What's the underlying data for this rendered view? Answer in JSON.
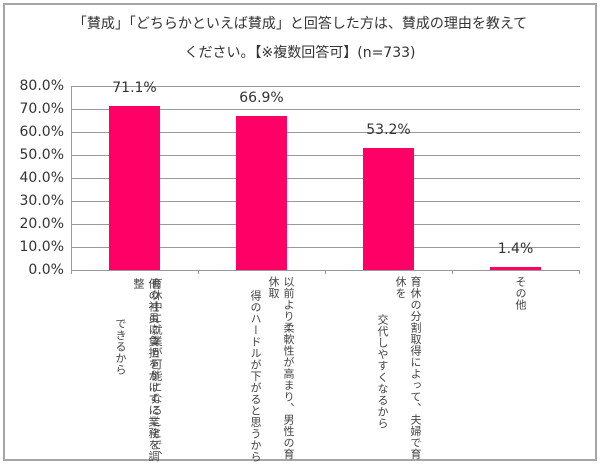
{
  "chart_data": {
    "type": "bar",
    "title": "「賛成」「どちらかといえば賛成」と回答した方は、賛成の理由を教えてください。【※複数回答可】(n=733)",
    "title_lines": [
      "「賛成」「どちらかといえば賛成」と回答した方は、賛成の理由を教えて",
      "ください。【※複数回答可】(n=733)"
    ],
    "categories": [
      "育休中に就業が可能になることで、他の社員に負担をかけずに業務を調整できるから",
      "以前より柔軟性が高まり、男性の育休取得のハードルが下がると思うから",
      "育休の分割取得によって、夫婦で育休を交代しやすくなるから",
      "その他"
    ],
    "category_label_columns": [
      [
        "育休中に就業が可能になることで、",
        "他の社員に負担をかけずに業務を調整",
        "できるから"
      ],
      [
        "以前より柔軟性が高まり、男性の育休取",
        "得のハードルが下がると思うから"
      ],
      [
        "育休の分割取得によって、夫婦で育休を",
        "交代しやすくなるから"
      ],
      [
        "その他"
      ]
    ],
    "values": [
      71.1,
      66.9,
      53.2,
      1.4
    ],
    "data_labels": [
      "71.1%",
      "66.9%",
      "53.2%",
      "1.4%"
    ],
    "xlabel": "",
    "ylabel": "",
    "ylim": [
      0,
      80
    ],
    "yticks": [
      "80.0%",
      "70.0%",
      "60.0%",
      "50.0%",
      "40.0%",
      "30.0%",
      "20.0%",
      "10.0%",
      "0.0%"
    ],
    "grid": true,
    "legend": null,
    "bar_color": "#ff0066"
  }
}
